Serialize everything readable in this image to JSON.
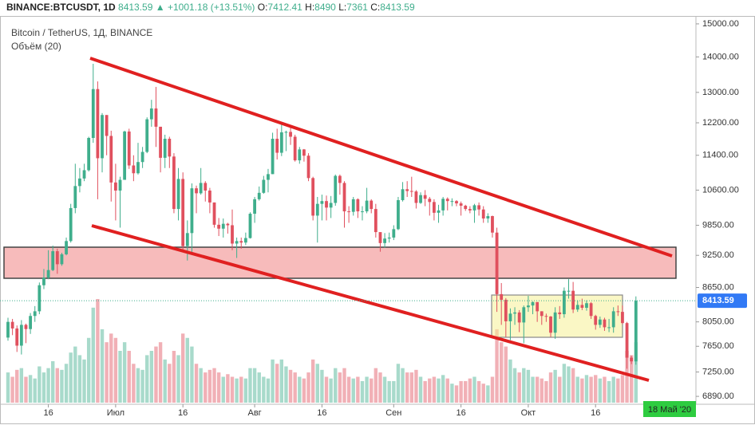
{
  "chart_data": {
    "type": "candlestick",
    "symbol": "BINANCE:BTCUSDT, 1D",
    "change": "+1001.18 (+13.51%)",
    "ohlc_labels": [
      "O:",
      "H:",
      "L:",
      "C:"
    ],
    "title": "Bitcoin / TetherUS, 1Д, BINANCE",
    "volume_label": "Объём (20)",
    "date_label": "18 Май '20",
    "up_color": "#3fae8c",
    "down_color": "#e0505e",
    "log_scale": true,
    "ylim": [
      6800,
      15250
    ],
    "yticks": [
      {
        "value": 15000,
        "label": "15000.00"
      },
      {
        "value": 14000,
        "label": "14000.00"
      },
      {
        "value": 13000,
        "label": "13000.00"
      },
      {
        "value": 12200,
        "label": "12200.00"
      },
      {
        "value": 11400,
        "label": "11400.00"
      },
      {
        "value": 10600,
        "label": "10600.00"
      },
      {
        "value": 9850,
        "label": "9850.00"
      },
      {
        "value": 9250,
        "label": "9250.00"
      },
      {
        "value": 8650,
        "label": "8650.00"
      },
      {
        "value": 8050,
        "label": "8050.00"
      },
      {
        "value": 7650,
        "label": "7650.00"
      },
      {
        "value": 7250,
        "label": "7250.00"
      },
      {
        "value": 6890,
        "label": "6890.00"
      }
    ],
    "xticks": [
      {
        "value": 9,
        "label": "16"
      },
      {
        "value": 24,
        "label": "Июл"
      },
      {
        "value": 39,
        "label": "16"
      },
      {
        "value": 55,
        "label": "Авг"
      },
      {
        "value": 70,
        "label": "16"
      },
      {
        "value": 86,
        "label": "Сен"
      },
      {
        "value": 101,
        "label": "16"
      },
      {
        "value": 116,
        "label": "Окт"
      },
      {
        "value": 131,
        "label": "16"
      }
    ],
    "open": [
      7790,
      8050,
      7940,
      7660,
      8000,
      7930,
      8150,
      8230,
      8690,
      8830,
      8970,
      9330,
      9080,
      9270,
      9530,
      10210,
      10690,
      10860,
      11050,
      11820,
      13090,
      11330,
      12400,
      11870,
      10770,
      10590,
      10830,
      11980,
      11160,
      10980,
      11240,
      11480,
      12290,
      12570,
      12100,
      11340,
      11800,
      11370,
      10190,
      10850,
      9430,
      9690,
      10640,
      10530,
      10760,
      10590,
      10330,
      9860,
      9780,
      9880,
      9850,
      9480,
      9530,
      9500,
      9590,
      10090,
      10400,
      10540,
      10830,
      10960,
      11800,
      11460,
      11960,
      11970,
      11850,
      11280,
      11540,
      11390,
      10870,
      10050,
      10300,
      10360,
      10220,
      10320,
      10920,
      10760,
      10140,
      10130,
      10400,
      10140,
      10140,
      10370,
      10190,
      9710,
      9490,
      9580,
      9600,
      9770,
      10380,
      10620,
      10580,
      10570,
      10320,
      10490,
      10410,
      10340,
      10110,
      10160,
      10410,
      10360,
      10360,
      10310,
      10260,
      10190,
      10160,
      10270,
      10180,
      9990,
      10040,
      9700,
      8530,
      8430,
      8060,
      8190,
      8210,
      8040,
      8300,
      8330,
      8390,
      8230,
      8150,
      8140,
      7870,
      8210,
      8180,
      8590,
      8590,
      8260,
      8340,
      8290,
      8370,
      8150,
      8000,
      8090,
      7960,
      7960,
      8230,
      8220,
      8030,
      7470,
      7412.41
    ],
    "high": [
      8120,
      8100,
      7990,
      8080,
      8020,
      8200,
      8320,
      8740,
      8990,
      9350,
      9440,
      9380,
      9300,
      9600,
      10300,
      11200,
      11100,
      11200,
      11850,
      13800,
      13300,
      12450,
      12400,
      12000,
      11200,
      10900,
      12000,
      12050,
      11400,
      11700,
      11600,
      12340,
      12800,
      13150,
      12100,
      11900,
      11850,
      11450,
      11100,
      11000,
      9950,
      10750,
      10700,
      11100,
      10800,
      10650,
      10330,
      10000,
      9990,
      9900,
      10180,
      9600,
      9600,
      9700,
      10120,
      10450,
      10680,
      10920,
      11080,
      11950,
      12050,
      12200,
      12000,
      12100,
      11900,
      11600,
      11550,
      11450,
      10900,
      10450,
      10500,
      10480,
      10470,
      10950,
      10950,
      10800,
      10250,
      10450,
      10420,
      10250,
      10650,
      10400,
      10300,
      9700,
      9690,
      9700,
      9850,
      10450,
      10780,
      10800,
      10900,
      10600,
      10550,
      10600,
      10450,
      10400,
      10280,
      10450,
      10440,
      10420,
      10380,
      10350,
      10280,
      10250,
      10300,
      10330,
      10250,
      10100,
      10050,
      9800,
      8730,
      8460,
      8280,
      8300,
      8250,
      8330,
      8500,
      8400,
      8390,
      8230,
      8190,
      8150,
      8300,
      8320,
      8650,
      8800,
      8750,
      8420,
      8450,
      8420,
      8390,
      8170,
      8140,
      8120,
      8100,
      8300,
      8330,
      8330,
      8050,
      7500,
      8490
    ],
    "low": [
      7740,
      7830,
      7560,
      7520,
      7700,
      7850,
      8050,
      8180,
      8620,
      8800,
      8950,
      8900,
      9050,
      9250,
      9500,
      10100,
      10550,
      10800,
      11020,
      11700,
      10400,
      11000,
      11400,
      10350,
      9950,
      9800,
      10830,
      11080,
      10800,
      10950,
      11100,
      11450,
      12100,
      11600,
      11000,
      11100,
      11100,
      10100,
      9950,
      9350,
      9150,
      9300,
      10100,
      10500,
      10350,
      10100,
      9800,
      9630,
      9600,
      9680,
      9350,
      9200,
      9380,
      9450,
      9580,
      9900,
      10370,
      10520,
      10550,
      10960,
      11300,
      11380,
      11500,
      11650,
      11250,
      11200,
      11250,
      10800,
      9950,
      9500,
      9950,
      9950,
      10000,
      10260,
      10500,
      9800,
      9900,
      10050,
      10000,
      9950,
      10100,
      10100,
      9600,
      9320,
      9400,
      9500,
      9550,
      9750,
      10350,
      10450,
      10450,
      10200,
      10300,
      10250,
      10050,
      9950,
      9900,
      10050,
      10160,
      10250,
      10250,
      10050,
      10150,
      10100,
      9900,
      10050,
      9900,
      9900,
      9600,
      8220,
      8000,
      7800,
      7750,
      8000,
      7880,
      7700,
      8220,
      8180,
      8050,
      8000,
      8050,
      7800,
      7770,
      8100,
      8120,
      8450,
      8200,
      8220,
      8250,
      8240,
      8100,
      7920,
      7950,
      7900,
      7880,
      7870,
      8150,
      8010,
      7300,
      7370,
      7361
    ],
    "close": [
      8050,
      7940,
      7660,
      8000,
      7930,
      8150,
      8230,
      8690,
      8830,
      8970,
      9330,
      9080,
      9270,
      9530,
      10210,
      10690,
      10860,
      11050,
      11820,
      13090,
      11330,
      12400,
      11870,
      10770,
      10590,
      10830,
      11980,
      11160,
      10980,
      11240,
      11480,
      12290,
      12570,
      12100,
      11340,
      11800,
      11370,
      10190,
      10850,
      9430,
      9690,
      10640,
      10530,
      10760,
      10590,
      10330,
      9860,
      9780,
      9880,
      9850,
      9480,
      9530,
      9500,
      9590,
      10090,
      10400,
      10540,
      10830,
      10960,
      11800,
      11460,
      11960,
      11970,
      11850,
      11280,
      11540,
      11390,
      10870,
      10050,
      10300,
      10360,
      10220,
      10320,
      10920,
      10760,
      10140,
      10130,
      10400,
      10140,
      10140,
      10370,
      10190,
      9710,
      9490,
      9580,
      9600,
      9770,
      10380,
      10620,
      10580,
      10570,
      10320,
      10490,
      10410,
      10340,
      10110,
      10160,
      10410,
      10360,
      10360,
      10310,
      10260,
      10190,
      10160,
      10270,
      10180,
      9990,
      10040,
      9700,
      8530,
      8430,
      8060,
      8190,
      8210,
      8040,
      8300,
      8330,
      8390,
      8230,
      8150,
      8140,
      7870,
      8210,
      8180,
      8590,
      8590,
      8260,
      8340,
      8290,
      8370,
      8150,
      8000,
      8090,
      7960,
      7960,
      8230,
      8220,
      8030,
      7470,
      7412.41,
      8413.59
    ],
    "volume": [
      35,
      30,
      38,
      40,
      30,
      32,
      28,
      42,
      35,
      40,
      48,
      40,
      38,
      45,
      58,
      65,
      55,
      50,
      75,
      110,
      120,
      85,
      70,
      80,
      75,
      60,
      70,
      60,
      45,
      40,
      38,
      55,
      60,
      65,
      70,
      50,
      45,
      60,
      55,
      80,
      75,
      65,
      45,
      40,
      35,
      38,
      40,
      35,
      30,
      33,
      30,
      28,
      30,
      28,
      40,
      40,
      35,
      30,
      28,
      50,
      45,
      50,
      42,
      38,
      35,
      30,
      28,
      35,
      50,
      45,
      38,
      30,
      28,
      40,
      35,
      40,
      30,
      28,
      30,
      25,
      30,
      28,
      40,
      35,
      30,
      25,
      25,
      45,
      40,
      35,
      35,
      38,
      30,
      25,
      28,
      30,
      28,
      32,
      28,
      22,
      20,
      25,
      25,
      28,
      30,
      25,
      22,
      20,
      30,
      85,
      70,
      65,
      50,
      40,
      35,
      40,
      38,
      30,
      30,
      28,
      25,
      35,
      38,
      30,
      45,
      42,
      40,
      30,
      28,
      32,
      30,
      32,
      28,
      30,
      25,
      30,
      28,
      32,
      60,
      55,
      70
    ]
  }
}
